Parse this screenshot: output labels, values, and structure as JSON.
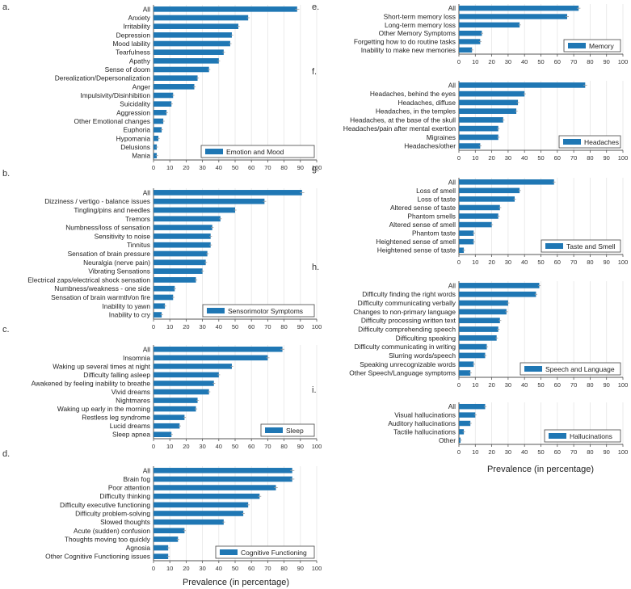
{
  "colors": {
    "bar": "#1f77b4",
    "grid": "#e6e6e6",
    "axis": "#555555",
    "error": "#999999"
  },
  "x_label": "Prevalence (in percentage)",
  "chart_data": [
    {
      "id": "a",
      "panel_label": "a.",
      "type": "bar",
      "orientation": "horizontal",
      "legend": "Emotion and Mood",
      "xlim": [
        0,
        100
      ],
      "xticks": [
        "0",
        "10",
        "20",
        "30",
        "40",
        "50",
        "60",
        "70",
        "80",
        "90",
        "100"
      ],
      "categories": [
        "All",
        "Anxiety",
        "Irritability",
        "Depression",
        "Mood lability",
        "Tearfulness",
        "Apathy",
        "Sense of doom",
        "Derealization/Depersonalization",
        "Anger",
        "Impulsivity/Disinhibition",
        "Suicidality",
        "Aggression",
        "Other Emotional changes",
        "Euphoria",
        "Hypomania",
        "Delusions",
        "Mania"
      ],
      "values": [
        88,
        58,
        52,
        48,
        47,
        43,
        40,
        34,
        27,
        25,
        12,
        11,
        8,
        6,
        5,
        3,
        2,
        2
      ]
    },
    {
      "id": "b",
      "panel_label": "b.",
      "type": "bar",
      "orientation": "horizontal",
      "legend": "Sensorimotor Symptoms",
      "xlim": [
        0,
        100
      ],
      "xticks": [
        "0",
        "10",
        "20",
        "30",
        "40",
        "50",
        "60",
        "70",
        "80",
        "90",
        "100"
      ],
      "categories": [
        "All",
        "Dizziness / vertigo - balance issues",
        "Tingling/pins and needles",
        "Tremors",
        "Numbness/loss of sensation",
        "Sensitivity to noise",
        "Tinnitus",
        "Sensation of brain pressure",
        "Neuralgia (nerve pain)",
        "Vibrating Sensations",
        "Electrical zaps/electrical shock sensation",
        "Numbness/weakness - one side",
        "Sensation of brain warmth/on fire",
        "Inability to yawn",
        "Inability to cry"
      ],
      "values": [
        91,
        68,
        50,
        41,
        36,
        35,
        35,
        33,
        32,
        30,
        26,
        13,
        12,
        7,
        5
      ]
    },
    {
      "id": "c",
      "panel_label": "c.",
      "type": "bar",
      "orientation": "horizontal",
      "legend": "Sleep",
      "xlim": [
        0,
        100
      ],
      "xticks": [
        "0",
        "10",
        "20",
        "30",
        "40",
        "50",
        "60",
        "70",
        "80",
        "90",
        "100"
      ],
      "categories": [
        "All",
        "Insomnia",
        "Waking up several times at night",
        "Difficulty falling asleep",
        "Awakened by feeling inability to breathe",
        "Vivid dreams",
        "Nightmares",
        "Waking up early in the morning",
        "Restless leg syndrome",
        "Lucid dreams",
        "Sleep apnea"
      ],
      "values": [
        79,
        70,
        48,
        40,
        37,
        34,
        27,
        26,
        19,
        16,
        11
      ]
    },
    {
      "id": "d",
      "panel_label": "d.",
      "type": "bar",
      "orientation": "horizontal",
      "legend": "Cognitive Functioning",
      "xlim": [
        0,
        100
      ],
      "xticks": [
        "0",
        "10",
        "20",
        "30",
        "40",
        "50",
        "60",
        "70",
        "80",
        "90",
        "100"
      ],
      "categories": [
        "All",
        "Brain fog",
        "Poor attention",
        "Difficulty thinking",
        "Difficulty executive functioning",
        "Difficulty problem-solving",
        "Slowed thoughts",
        "Acute (sudden) confusion",
        "Thoughts moving too quickly",
        "Agnosia",
        "Other Cognitive Functioning issues"
      ],
      "values": [
        85,
        85,
        75,
        65,
        58,
        55,
        43,
        19,
        15,
        9,
        9
      ]
    },
    {
      "id": "e",
      "panel_label": "e.",
      "type": "bar",
      "orientation": "horizontal",
      "legend": "Memory",
      "xlim": [
        0,
        100
      ],
      "xticks": [
        "0",
        "10",
        "20",
        "30",
        "40",
        "50",
        "60",
        "70",
        "80",
        "90",
        "100"
      ],
      "categories": [
        "All",
        "Short-term memory loss",
        "Long-term memory loss",
        "Other Memory Symptoms",
        "Forgetting how to do routine tasks",
        "Inability to make new memories"
      ],
      "values": [
        73,
        66,
        37,
        14,
        13,
        8
      ]
    },
    {
      "id": "f",
      "panel_label": "f.",
      "type": "bar",
      "orientation": "horizontal",
      "legend": "Headaches",
      "xlim": [
        0,
        100
      ],
      "xticks": [
        "0",
        "10",
        "20",
        "30",
        "40",
        "50",
        "60",
        "70",
        "80",
        "90",
        "100"
      ],
      "categories": [
        "All",
        "Headaches, behind the eyes",
        "Headaches, diffuse",
        "Headaches, in the temples",
        "Headaches, at the base of the skull",
        "Headaches/pain after mental exertion",
        "Migraines",
        "Headaches/other"
      ],
      "values": [
        77,
        40,
        36,
        35,
        27,
        24,
        24,
        13
      ]
    },
    {
      "id": "g",
      "panel_label": "g.",
      "type": "bar",
      "orientation": "horizontal",
      "legend": "Taste and Smell",
      "xlim": [
        0,
        100
      ],
      "xticks": [
        "0",
        "10",
        "20",
        "30",
        "40",
        "50",
        "60",
        "70",
        "80",
        "90",
        "100"
      ],
      "categories": [
        "All",
        "Loss of smell",
        "Loss of taste",
        "Altered sense of taste",
        "Phantom smells",
        "Altered sense of smell",
        "Phantom taste",
        "Heightened sense of smell",
        "Heightened sense of taste"
      ],
      "values": [
        58,
        37,
        34,
        25,
        24,
        20,
        9,
        9,
        3
      ]
    },
    {
      "id": "h",
      "panel_label": "h.",
      "type": "bar",
      "orientation": "horizontal",
      "legend": "Speech and Language",
      "xlim": [
        0,
        100
      ],
      "xticks": [
        "0",
        "10",
        "20",
        "30",
        "40",
        "50",
        "60",
        "70",
        "80",
        "90",
        "100"
      ],
      "categories": [
        "All",
        "Difficulty finding the right words",
        "Difficulty communicating verbally",
        "Changes to non-primary language",
        "Difficulty processing written text",
        "Difficulty comprehending speech",
        "Difficulting speaking",
        "Difficulty communicating in writing",
        "Slurring words/speech",
        "Speaking unrecognizable words",
        "Other Speech/Language symptoms"
      ],
      "values": [
        49,
        47,
        30,
        29,
        25,
        24,
        23,
        17,
        16,
        9,
        7
      ]
    },
    {
      "id": "i",
      "panel_label": "i.",
      "type": "bar",
      "orientation": "horizontal",
      "legend": "Hallucinations",
      "xlim": [
        0,
        100
      ],
      "xticks": [
        "0",
        "10",
        "20",
        "30",
        "40",
        "50",
        "60",
        "70",
        "80",
        "90",
        "100"
      ],
      "categories": [
        "All",
        "Visual  hallucinations",
        "Auditory hallucinations",
        "Tactile hallucinations",
        "Other"
      ],
      "values": [
        16,
        10,
        7,
        3,
        1
      ]
    }
  ]
}
